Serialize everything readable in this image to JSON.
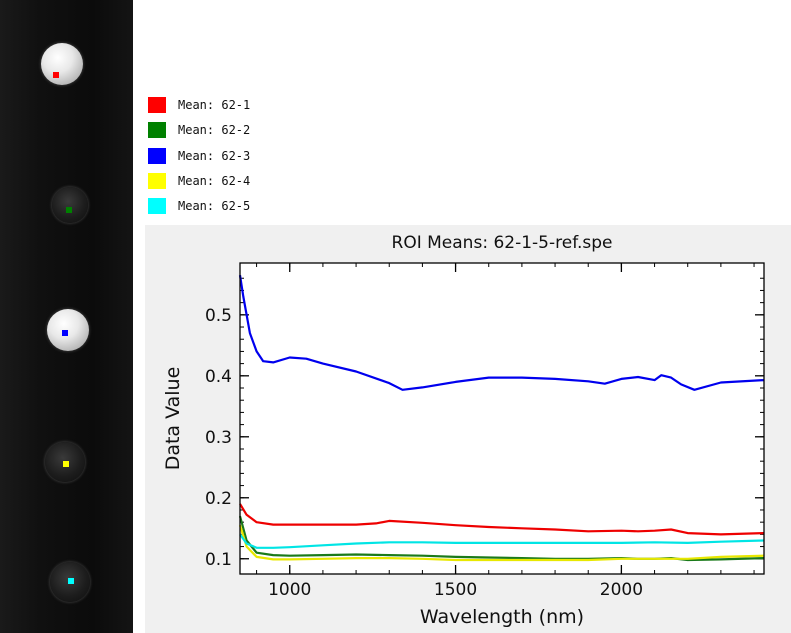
{
  "legend": {
    "items": [
      {
        "label": "Mean: 62-1",
        "color": "#ff0000"
      },
      {
        "label": "Mean: 62-2",
        "color": "#008000"
      },
      {
        "label": "Mean: 62-3",
        "color": "#0000ff"
      },
      {
        "label": "Mean: 62-4",
        "color": "#ffff00"
      },
      {
        "label": "Mean: 62-5",
        "color": "#00ffff"
      }
    ]
  },
  "samples": [
    {
      "marker_color": "#ff0000",
      "appearance": "bright"
    },
    {
      "marker_color": "#008000",
      "appearance": "dark"
    },
    {
      "marker_color": "#0000ff",
      "appearance": "bright"
    },
    {
      "marker_color": "#ffff00",
      "appearance": "dark"
    },
    {
      "marker_color": "#00ffff",
      "appearance": "dark"
    }
  ],
  "chart_data": {
    "type": "line",
    "title": "ROI Means: 62-1-5-ref.spe",
    "xlabel": "Wavelength (nm)",
    "ylabel": "Data Value",
    "xlim": [
      850,
      2430
    ],
    "ylim": [
      0.075,
      0.585
    ],
    "xticks": [
      1000,
      1500,
      2000
    ],
    "yticks": [
      0.1,
      0.2,
      0.3,
      0.4,
      0.5
    ],
    "grid": false,
    "legend_position": "top-left, outside plot",
    "series": [
      {
        "name": "Mean: 62-1",
        "color": "#ee0000",
        "x": [
          850,
          870,
          900,
          950,
          1000,
          1100,
          1200,
          1260,
          1300,
          1400,
          1500,
          1600,
          1700,
          1800,
          1900,
          2000,
          2050,
          2100,
          2150,
          2200,
          2300,
          2430
        ],
        "y": [
          0.19,
          0.172,
          0.16,
          0.156,
          0.156,
          0.156,
          0.156,
          0.158,
          0.162,
          0.159,
          0.155,
          0.152,
          0.15,
          0.148,
          0.145,
          0.146,
          0.145,
          0.146,
          0.148,
          0.142,
          0.14,
          0.142
        ]
      },
      {
        "name": "Mean: 62-2",
        "color": "#1a7a1a",
        "x": [
          850,
          870,
          900,
          950,
          1000,
          1100,
          1200,
          1300,
          1400,
          1500,
          1600,
          1700,
          1800,
          1900,
          2000,
          2050,
          2100,
          2150,
          2200,
          2300,
          2430
        ],
        "y": [
          0.17,
          0.13,
          0.11,
          0.106,
          0.105,
          0.106,
          0.107,
          0.106,
          0.105,
          0.103,
          0.102,
          0.101,
          0.1,
          0.1,
          0.101,
          0.1,
          0.1,
          0.101,
          0.098,
          0.099,
          0.101
        ]
      },
      {
        "name": "Mean: 62-3",
        "color": "#0000ee",
        "x": [
          850,
          860,
          880,
          900,
          920,
          950,
          1000,
          1050,
          1100,
          1200,
          1300,
          1340,
          1400,
          1500,
          1600,
          1700,
          1800,
          1900,
          1950,
          2000,
          2050,
          2100,
          2120,
          2150,
          2180,
          2220,
          2300,
          2430
        ],
        "y": [
          0.565,
          0.53,
          0.47,
          0.44,
          0.424,
          0.422,
          0.43,
          0.428,
          0.42,
          0.407,
          0.388,
          0.377,
          0.381,
          0.39,
          0.397,
          0.397,
          0.395,
          0.391,
          0.387,
          0.395,
          0.398,
          0.393,
          0.401,
          0.397,
          0.386,
          0.377,
          0.389,
          0.393
        ]
      },
      {
        "name": "Mean: 62-4",
        "color": "#e8e800",
        "x": [
          850,
          870,
          900,
          950,
          1000,
          1100,
          1200,
          1300,
          1400,
          1500,
          1600,
          1700,
          1800,
          1900,
          2000,
          2100,
          2200,
          2300,
          2430
        ],
        "y": [
          0.155,
          0.12,
          0.103,
          0.099,
          0.099,
          0.1,
          0.101,
          0.101,
          0.1,
          0.098,
          0.098,
          0.098,
          0.098,
          0.098,
          0.1,
          0.1,
          0.1,
          0.103,
          0.105
        ]
      },
      {
        "name": "Mean: 62-5",
        "color": "#00e5e5",
        "x": [
          850,
          870,
          900,
          950,
          1000,
          1100,
          1200,
          1300,
          1400,
          1500,
          1600,
          1700,
          1800,
          1900,
          2000,
          2100,
          2200,
          2300,
          2430
        ],
        "y": [
          0.14,
          0.125,
          0.118,
          0.118,
          0.119,
          0.122,
          0.125,
          0.127,
          0.127,
          0.126,
          0.126,
          0.126,
          0.126,
          0.126,
          0.126,
          0.127,
          0.126,
          0.128,
          0.13
        ]
      }
    ]
  }
}
